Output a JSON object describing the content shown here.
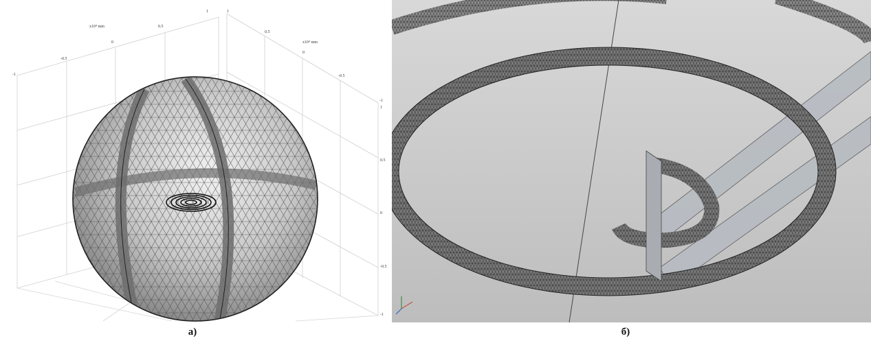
{
  "captions": {
    "a": "а)",
    "b": "б)"
  },
  "panel_a": {
    "axis_x_label": "x10⁴ mm",
    "axis_y_label": "x10⁴ mm",
    "ticks_back_x": [
      "-1",
      "-0.5",
      "0",
      "0.5",
      "1"
    ],
    "ticks_back_y": [
      "1",
      "0.5",
      "0",
      "-0.5",
      "-1"
    ],
    "ticks_right_z": [
      "1",
      "0.5",
      "0",
      "-0.5",
      "-1"
    ]
  },
  "colors": {
    "sphere_fill": "#c9c9c9",
    "mesh_line": "#3a3a3a",
    "panel_b_bg": "#cfcfcf",
    "ring_fill": "#8d8d8d"
  }
}
